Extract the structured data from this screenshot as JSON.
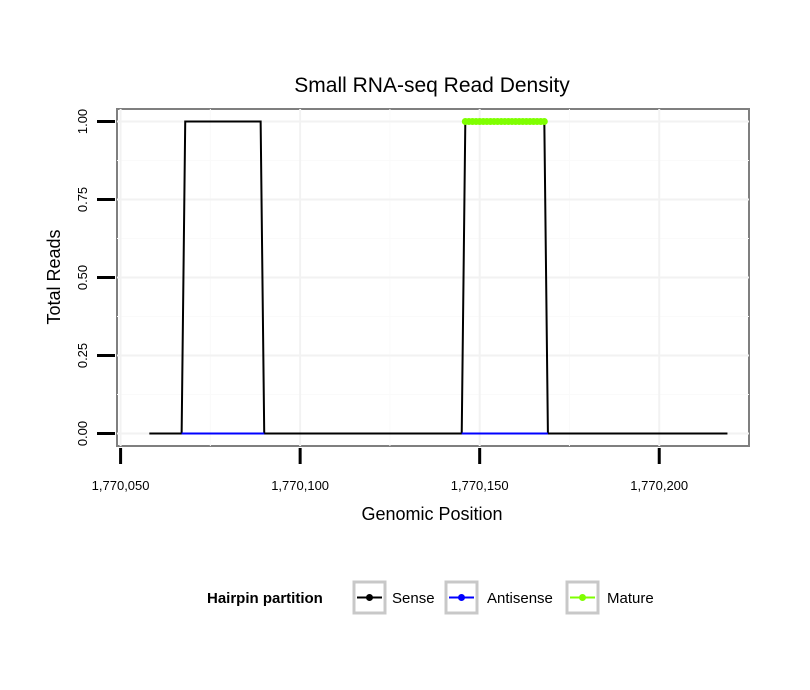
{
  "chart_data": {
    "type": "line",
    "title": "Small RNA-seq Read Density",
    "xlabel": "Genomic Position",
    "ylabel": "Total Reads",
    "xlim": [
      1770049,
      1770225
    ],
    "ylim": [
      -0.04,
      1.04
    ],
    "x_ticks": [
      1770050,
      1770100,
      1770150,
      1770200
    ],
    "x_tick_labels": [
      "1,770,050",
      "1,770,100",
      "1,770,150",
      "1,770,200"
    ],
    "y_ticks": [
      0,
      0.25,
      0.5,
      0.75,
      1.0
    ],
    "y_tick_labels": [
      "0.00",
      "0.25",
      "0.50",
      "0.75",
      "1.00"
    ],
    "grid": true,
    "legend": {
      "title": "Hairpin partition",
      "placement": "bottom",
      "entries": [
        "Sense",
        "Antisense",
        "Mature"
      ]
    },
    "series": [
      {
        "name": "Sense",
        "color": "#000000",
        "x": [
          1770058,
          1770067,
          1770068,
          1770089,
          1770090,
          1770145,
          1770146,
          1770168,
          1770169,
          1770219
        ],
        "y": [
          0,
          0,
          1,
          1,
          0,
          0,
          1,
          1,
          0,
          0
        ]
      },
      {
        "name": "Antisense",
        "color": "#0000ff",
        "x": [
          1770067,
          1770090,
          1770145,
          1770169
        ],
        "y": [
          0,
          0,
          0,
          0
        ],
        "segments": [
          [
            1770067,
            1770090
          ],
          [
            1770145,
            1770169
          ]
        ]
      },
      {
        "name": "Mature",
        "color": "#7fff00",
        "x": [
          1770146,
          1770168
        ],
        "y": [
          1,
          1
        ]
      }
    ]
  }
}
